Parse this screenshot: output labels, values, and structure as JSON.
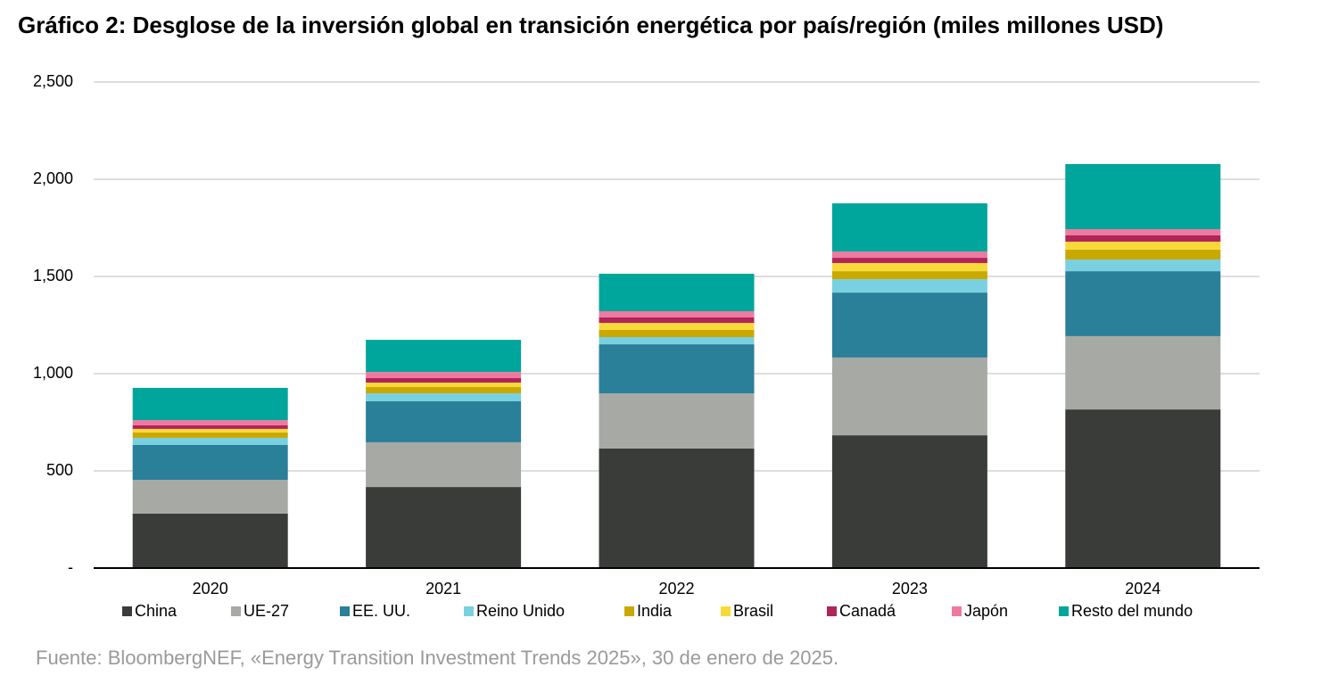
{
  "chart_data": {
    "type": "stacked_bar",
    "title": "Gráfico 2: Desglose de la inversión global en transición energética por país/región (miles millones USD)",
    "source": "Fuente: BloombergNEF, «Energy Transition Investment Trends 2025», 30 de enero de 2025.",
    "categories": [
      "2020",
      "2021",
      "2022",
      "2023",
      "2024"
    ],
    "series": [
      {
        "name": "China",
        "color": "#3a3c39",
        "values": [
          280,
          417,
          615,
          683,
          816
        ]
      },
      {
        "name": "UE-27",
        "color": "#a6a9a4",
        "values": [
          174,
          230,
          284,
          400,
          377
        ]
      },
      {
        "name": "EE. UU.",
        "color": "#2a7f99",
        "values": [
          179,
          211,
          252,
          334,
          334
        ]
      },
      {
        "name": "Reino Unido",
        "color": "#79d0e0",
        "values": [
          37,
          41,
          37,
          69,
          60
        ]
      },
      {
        "name": "India",
        "color": "#c9a800",
        "values": [
          27,
          32,
          37,
          41,
          51
        ]
      },
      {
        "name": "Brasil",
        "color": "#f8d93a",
        "values": [
          19,
          23,
          36,
          42,
          41
        ]
      },
      {
        "name": "Canadá",
        "color": "#b0245a",
        "values": [
          18,
          23,
          28,
          27,
          32
        ]
      },
      {
        "name": "Japón",
        "color": "#ee7aa0",
        "values": [
          27,
          32,
          32,
          32,
          32
        ]
      },
      {
        "name": "Resto del mundo",
        "color": "#00a59b",
        "values": [
          166,
          165,
          193,
          248,
          335
        ]
      }
    ],
    "ylim": [
      0,
      2500
    ],
    "yticks": [
      {
        "value": 0,
        "label": "-"
      },
      500,
      {
        "value": 1000,
        "label": "1,000"
      },
      {
        "value": 1500,
        "label": "1,500"
      },
      {
        "value": 2000,
        "label": "2,000"
      },
      {
        "value": 2500,
        "label": "2,500"
      }
    ],
    "grid": true
  }
}
